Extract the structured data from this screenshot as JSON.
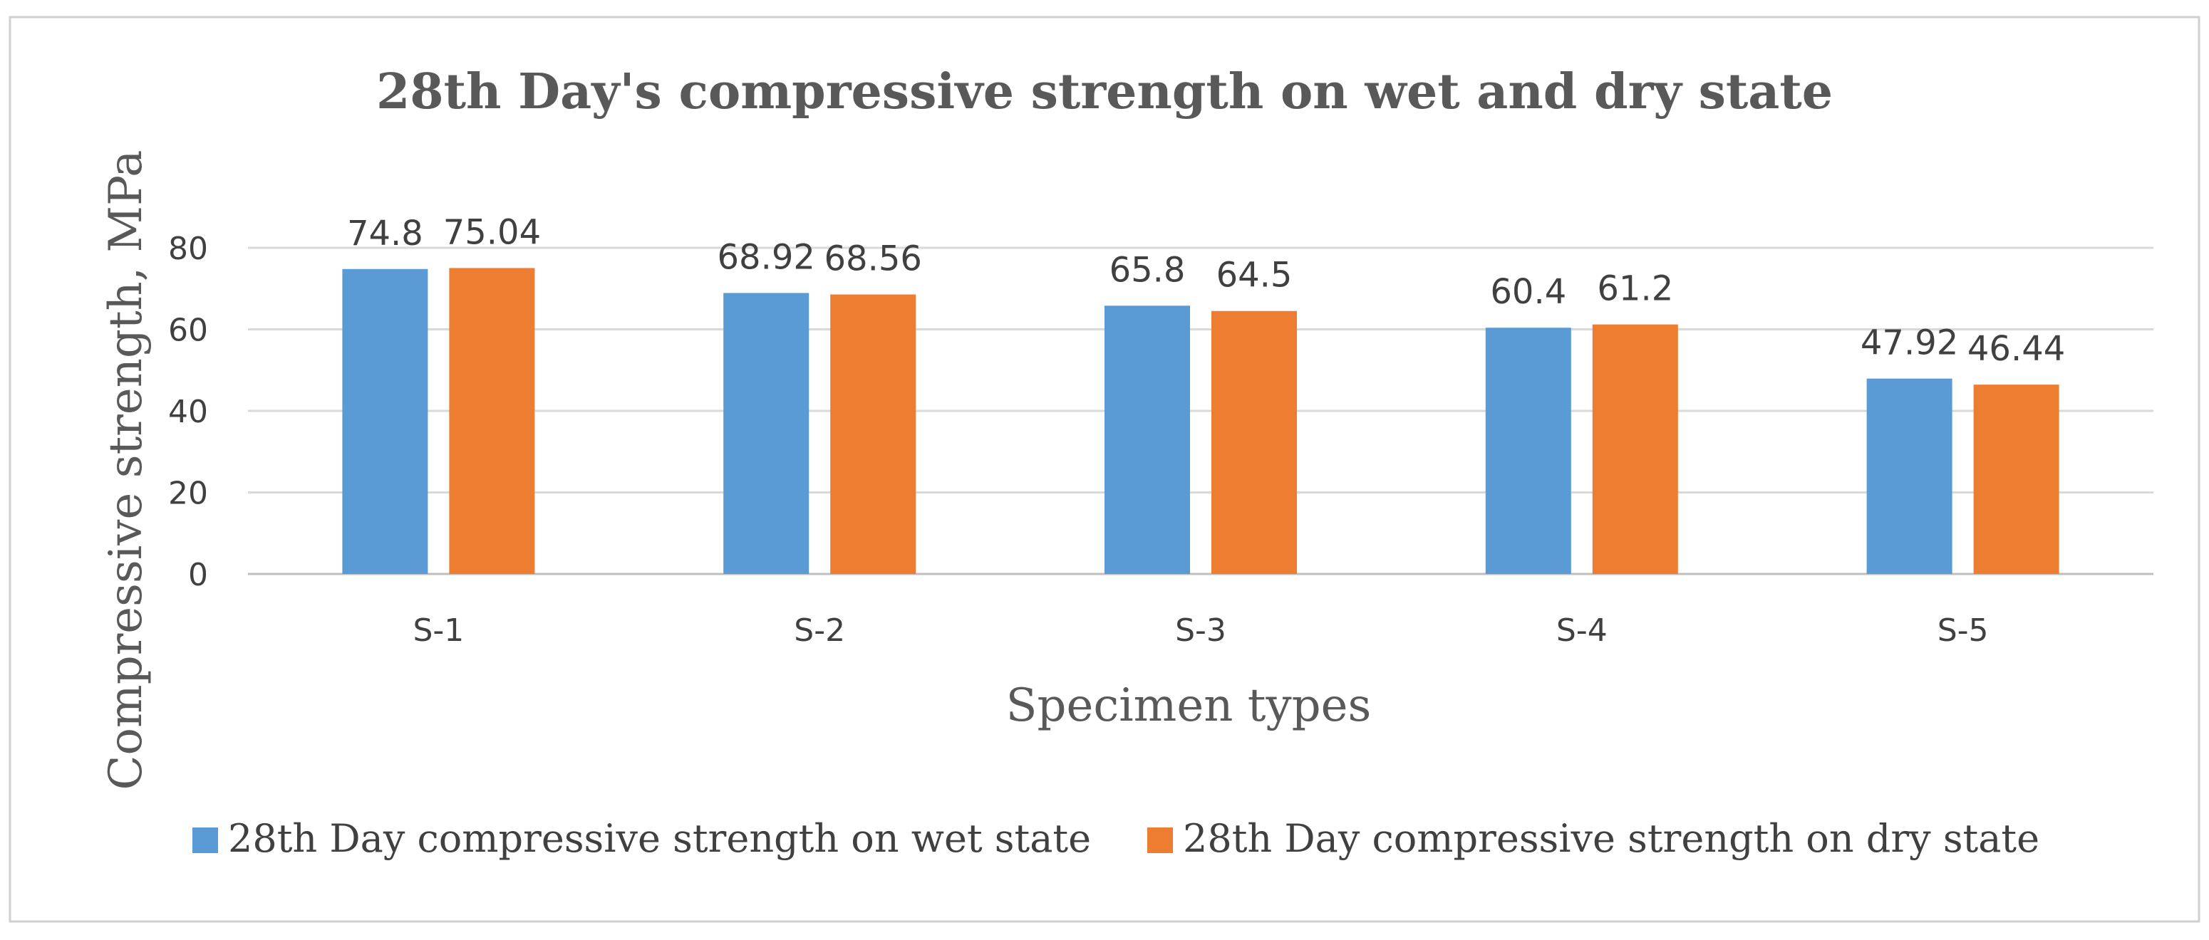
{
  "chart_data": {
    "type": "bar",
    "title": "28th  Day's compressive strength on wet and dry state",
    "xlabel": "Specimen types",
    "ylabel": "Compressive strength, MPa",
    "categories": [
      "S-1",
      "S-2",
      "S-3",
      "S-4",
      "S-5"
    ],
    "series": [
      {
        "name": "28th Day compressive strength on wet state",
        "color": "#5B9BD5",
        "values": [
          74.8,
          68.92,
          65.8,
          60.4,
          47.92
        ],
        "labels": [
          "74.8",
          "68.92",
          "65.8",
          "60.4",
          "47.92"
        ]
      },
      {
        "name": "28th Day compressive strength on dry state",
        "color": "#ED7D31",
        "values": [
          75.04,
          68.56,
          64.5,
          61.2,
          46.44
        ],
        "labels": [
          "75.04",
          "68.56",
          "64.5",
          "61.2",
          "46.44"
        ]
      }
    ],
    "ylim": [
      0,
      80
    ],
    "yticks": [
      0,
      20,
      40,
      60,
      80
    ],
    "ytick_labels": [
      "0",
      "20",
      "40",
      "60",
      "80"
    ],
    "grid": true,
    "legend_position": "bottom"
  }
}
